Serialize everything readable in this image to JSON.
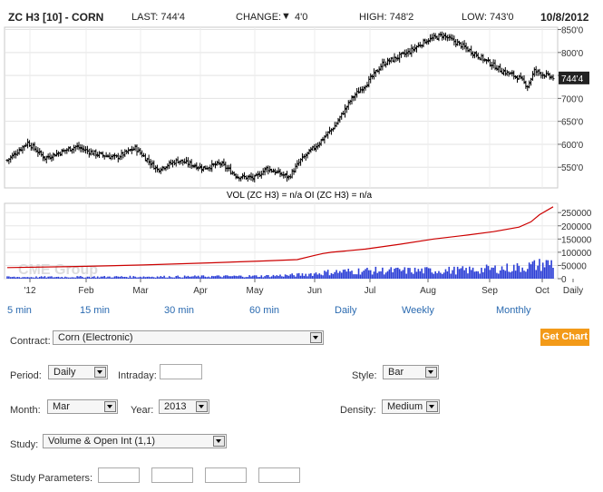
{
  "header": {
    "symbol": "ZC H3 [10] - CORN",
    "last": "LAST: 744'4",
    "change_label": "CHANGE:",
    "change_value": "4'0",
    "high": "HIGH: 748'2",
    "low": "LOW: 743'0",
    "date": "10/8/2012"
  },
  "watermark": "CME Group",
  "chart_data": [
    {
      "type": "ohlc",
      "title": "",
      "xlabel": "",
      "ylabel": "",
      "ylim": [
        505,
        855
      ],
      "y_tick_labels": [
        "850'0",
        "800'0",
        "750'0",
        "700'0",
        "650'0",
        "600'0",
        "550'0"
      ],
      "y_tick_values": [
        850,
        800,
        750,
        700,
        650,
        600,
        550
      ],
      "last_price_label": "744'4",
      "last_price": 744.5,
      "x_tick_labels": [
        "'12",
        "Feb",
        "Mar",
        "Apr",
        "May",
        "Jun",
        "Jul",
        "Aug",
        "Sep",
        "Oct",
        "Daily"
      ],
      "close_anchors": [
        [
          0,
          565
        ],
        [
          12,
          604
        ],
        [
          22,
          570
        ],
        [
          40,
          595
        ],
        [
          52,
          579
        ],
        [
          64,
          571
        ],
        [
          75,
          592
        ],
        [
          88,
          545
        ],
        [
          100,
          565
        ],
        [
          115,
          548
        ],
        [
          125,
          558
        ],
        [
          135,
          530
        ],
        [
          145,
          526
        ],
        [
          152,
          548
        ],
        [
          165,
          528
        ],
        [
          172,
          565
        ],
        [
          182,
          600
        ],
        [
          192,
          640
        ],
        [
          202,
          700
        ],
        [
          212,
          738
        ],
        [
          220,
          775
        ],
        [
          235,
          800
        ],
        [
          245,
          825
        ],
        [
          255,
          838
        ],
        [
          265,
          818
        ],
        [
          275,
          795
        ],
        [
          285,
          772
        ],
        [
          290,
          760
        ],
        [
          300,
          745
        ],
        [
          305,
          727
        ],
        [
          309,
          760
        ],
        [
          316,
          750
        ],
        [
          320,
          744.5
        ]
      ],
      "bar_count": 321
    },
    {
      "type": "line",
      "title": "VOL (ZC H3) = n/a OI (ZC H3) = n/a",
      "ylim": [
        0,
        285000
      ],
      "y_tick_labels": [
        "250000",
        "200000",
        "150000",
        "100000",
        "50000",
        "0"
      ],
      "y_tick_values": [
        250000,
        200000,
        150000,
        100000,
        50000,
        0
      ],
      "series": [
        {
          "name": "OI (ZC H3)",
          "x": [
            0,
            40,
            80,
            120,
            150,
            170,
            180,
            185,
            190,
            210,
            230,
            250,
            270,
            285,
            300,
            307,
            312,
            320
          ],
          "y": [
            42000,
            46000,
            52000,
            60000,
            67000,
            72000,
            88000,
            95000,
            100000,
            112000,
            130000,
            150000,
            165000,
            178000,
            195000,
            215000,
            242000,
            272000
          ]
        },
        {
          "name": "VOL (ZC H3)",
          "x": [
            0,
            100,
            150,
            170,
            190,
            210,
            240,
            270,
            300,
            315,
            320
          ],
          "y": [
            6000,
            8000,
            10000,
            14000,
            25000,
            30000,
            30000,
            32000,
            42000,
            55000,
            60000
          ]
        }
      ]
    }
  ],
  "intervals": [
    "5 min",
    "15 min",
    "30 min",
    "60 min",
    "Daily",
    "Weekly",
    "Monthly"
  ],
  "form": {
    "contract_label": "Contract:",
    "contract_value": "Corn (Electronic)",
    "get_chart": "Get Chart",
    "period_label": "Period:",
    "period_value": "Daily",
    "intraday_label": "Intraday:",
    "style_label": "Style:",
    "style_value": "Bar",
    "month_label": "Month:",
    "month_value": "Mar",
    "year_label": "Year:",
    "year_value": "2013",
    "density_label": "Density:",
    "density_value": "Medium",
    "study_label": "Study:",
    "study_value": "Volume & Open Int (1,1)",
    "study_params_label": "Study Parameters:"
  },
  "colors": {
    "oi_line": "#cc0000",
    "volume_bars": "#2c3fd6",
    "get_chart_bg": "#f39a18",
    "links": "#2a6ab0"
  }
}
